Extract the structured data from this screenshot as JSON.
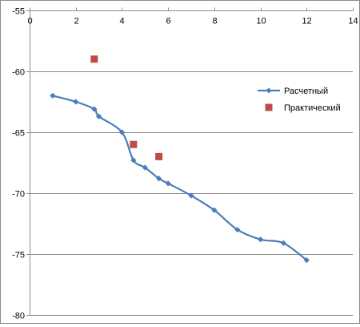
{
  "chart_data": {
    "type": "scatter",
    "xlim": [
      0,
      14
    ],
    "ylim": [
      -80,
      -55
    ],
    "x_ticks": [
      0,
      2,
      4,
      6,
      8,
      10,
      12,
      14
    ],
    "y_ticks": [
      -55,
      -60,
      -65,
      -70,
      -75,
      -80
    ],
    "x_tick_labels": [
      "0",
      "2",
      "4",
      "6",
      "8",
      "10",
      "12",
      "14"
    ],
    "y_tick_labels": [
      "-55",
      "-60",
      "-65",
      "-70",
      "-75",
      "-80"
    ],
    "x_axis_position": "top",
    "grid": {
      "horizontal": true,
      "vertical": false
    },
    "legend_position": "right",
    "series": [
      {
        "name": "Расчетный",
        "color": "#4a7ebb",
        "marker": "diamond",
        "line": "smooth",
        "points": [
          [
            1,
            -62.0
          ],
          [
            2,
            -62.5
          ],
          [
            2.8,
            -63.1
          ],
          [
            3,
            -63.7
          ],
          [
            4,
            -65.0
          ],
          [
            4.5,
            -67.3
          ],
          [
            5,
            -67.9
          ],
          [
            5.6,
            -68.8
          ],
          [
            6,
            -69.2
          ],
          [
            7,
            -70.2
          ],
          [
            8,
            -71.4
          ],
          [
            9,
            -73.0
          ],
          [
            10,
            -73.8
          ],
          [
            11,
            -74.1
          ],
          [
            12,
            -75.5
          ]
        ]
      },
      {
        "name": "Практический",
        "color": "#be4b48",
        "marker": "square",
        "line": "none",
        "points": [
          [
            2.8,
            -59.0
          ],
          [
            4.5,
            -66.0
          ],
          [
            5.6,
            -67.0
          ]
        ]
      }
    ]
  }
}
